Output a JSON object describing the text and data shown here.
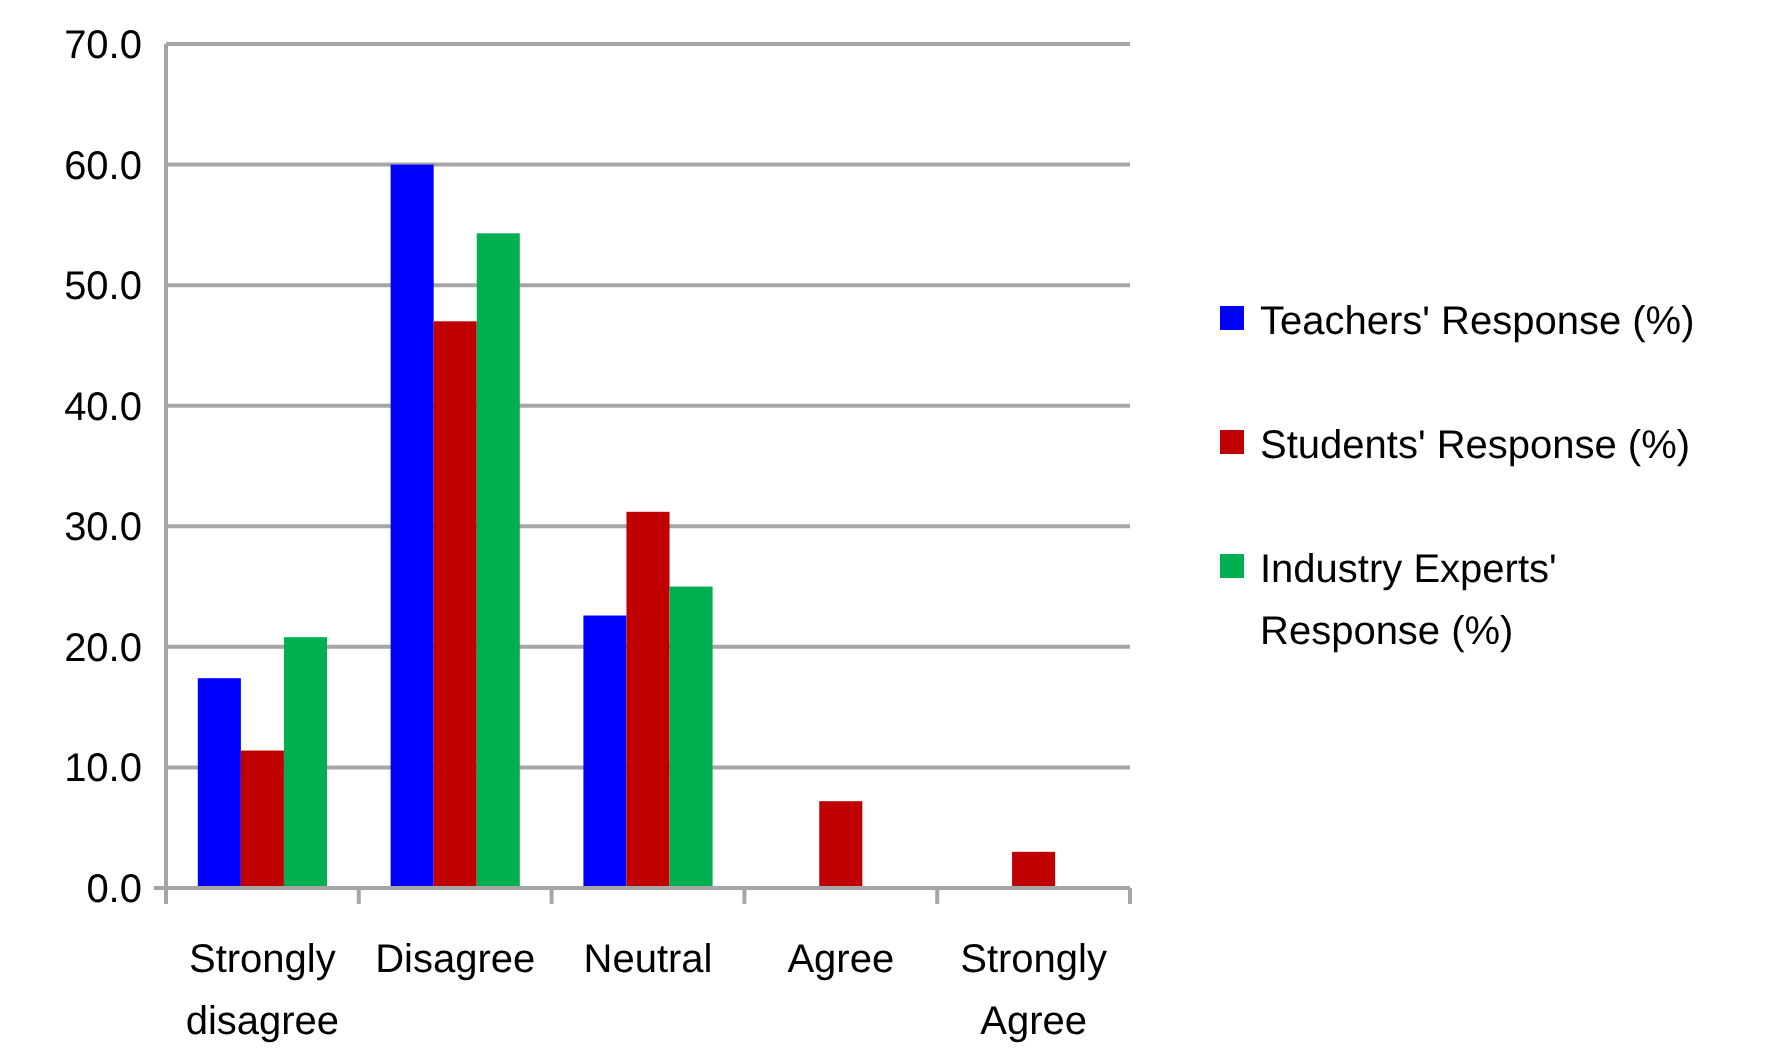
{
  "chart_data": {
    "type": "bar",
    "categories": [
      "Strongly disagree",
      "Disagree",
      "Neutral",
      "Agree",
      "Strongly Agree"
    ],
    "series": [
      {
        "name": "Teachers' Response (%)",
        "color": "#0000ff",
        "values": [
          17.4,
          60.0,
          22.6,
          0,
          0
        ]
      },
      {
        "name": "Students' Response (%)",
        "color": "#c00000",
        "values": [
          11.4,
          47.0,
          31.2,
          7.2,
          3.0
        ]
      },
      {
        "name": "Industry Experts' Response (%)",
        "color": "#00b050",
        "values": [
          20.8,
          54.3,
          25.0,
          0,
          0
        ]
      }
    ],
    "ylim": [
      0,
      70
    ],
    "yticks": [
      {
        "value": 0,
        "label": "0.0"
      },
      {
        "value": 10,
        "label": "10.0"
      },
      {
        "value": 20,
        "label": "20.0"
      },
      {
        "value": 30,
        "label": "30.0"
      },
      {
        "value": 40,
        "label": "40.0"
      },
      {
        "value": 50,
        "label": "50.0"
      },
      {
        "value": 60,
        "label": "60.0"
      },
      {
        "value": 70,
        "label": "70.0"
      }
    ],
    "grid": "y",
    "legend": "right"
  }
}
